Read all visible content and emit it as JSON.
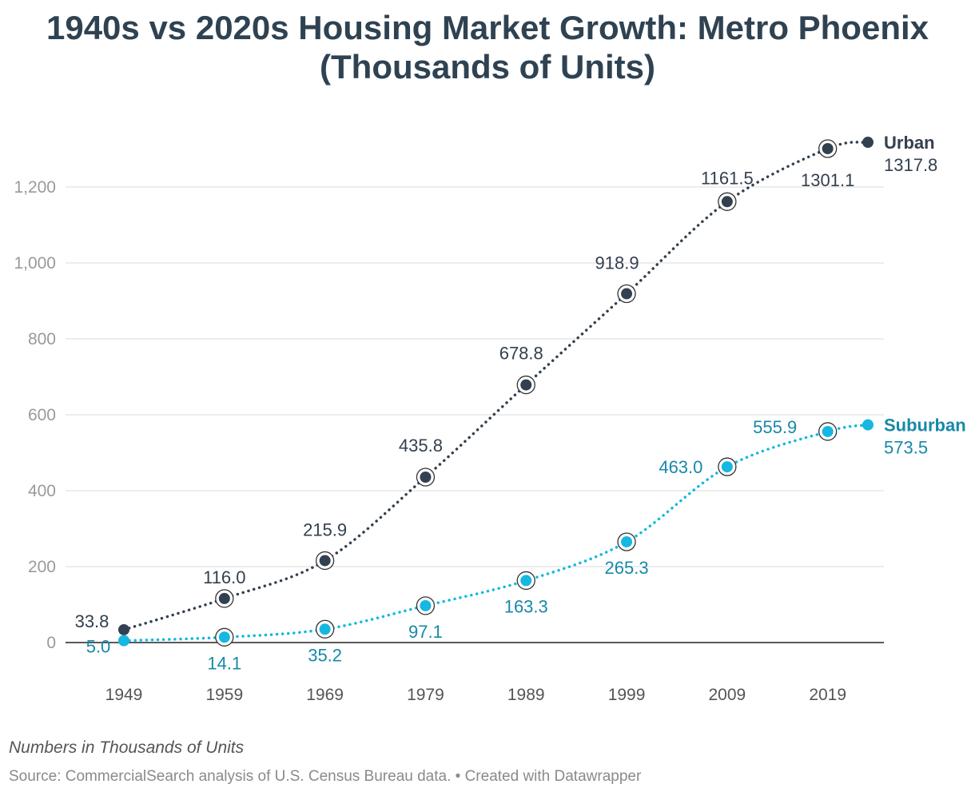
{
  "title_line1": "1940s vs 2020s Housing Market Growth: Metro Phoenix",
  "title_line2": "(Thousands of Units)",
  "notes": "Numbers in Thousands of Units",
  "source": "Source: CommercialSearch analysis of U.S. Census Bureau data. • Created with Datawrapper",
  "colors": {
    "urban": "#33404f",
    "suburban": "#14b8e0",
    "suburban_label": "#1789a8",
    "axis_text": "#9a9a9a",
    "grid": "#e2e2e2"
  },
  "chart_data": {
    "type": "line",
    "title": "1940s vs 2020s Housing Market Growth: Metro Phoenix (Thousands of Units)",
    "x_tick_labels": [
      "1949",
      "1959",
      "1969",
      "1979",
      "1989",
      "1999",
      "2009",
      "2019"
    ],
    "x_range": [
      1949,
      2023
    ],
    "ylim": [
      0,
      1300
    ],
    "y_ticks": [
      0,
      200,
      400,
      600,
      800,
      1000,
      1200
    ],
    "y_tick_labels": [
      "0",
      "200",
      "400",
      "600",
      "800",
      "1,000",
      "1,200"
    ],
    "grid": true,
    "series": [
      {
        "name": "Urban",
        "x": [
          1949,
          1959,
          1969,
          1979,
          1989,
          1999,
          2009,
          2019,
          2023
        ],
        "values": [
          33.8,
          116.0,
          215.9,
          435.8,
          678.8,
          918.9,
          1161.5,
          1301.1,
          1317.8
        ],
        "labels": [
          "33.8",
          "116.0",
          "215.9",
          "435.8",
          "678.8",
          "918.9",
          "1161.5",
          "1301.1",
          "1317.8"
        ]
      },
      {
        "name": "Suburban",
        "x": [
          1949,
          1959,
          1969,
          1979,
          1989,
          1999,
          2009,
          2019,
          2023
        ],
        "values": [
          5.0,
          14.1,
          35.2,
          97.1,
          163.3,
          265.3,
          463.0,
          555.9,
          573.5
        ],
        "labels": [
          "5.0",
          "14.1",
          "35.2",
          "97.1",
          "163.3",
          "265.3",
          "463.0",
          "555.9",
          "573.5"
        ]
      }
    ]
  }
}
